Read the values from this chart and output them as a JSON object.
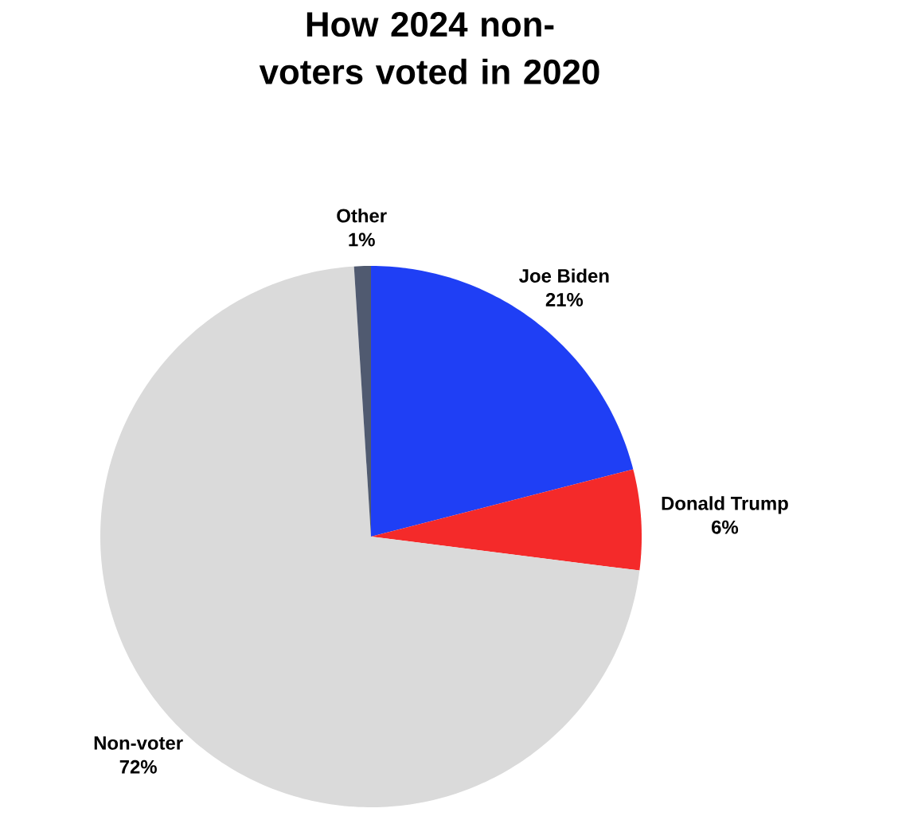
{
  "chart_data": {
    "type": "pie",
    "title": "How 2024 non-voters voted in 2020",
    "categories": [
      "Joe Biden",
      "Donald Trump",
      "Non-voter",
      "Other"
    ],
    "values": [
      21,
      6,
      72,
      1
    ],
    "value_labels": [
      "21%",
      "6%",
      "72%",
      "1%"
    ],
    "colors": [
      "#1f3ff5",
      "#f42a2a",
      "#dadada",
      "#505a70"
    ]
  }
}
